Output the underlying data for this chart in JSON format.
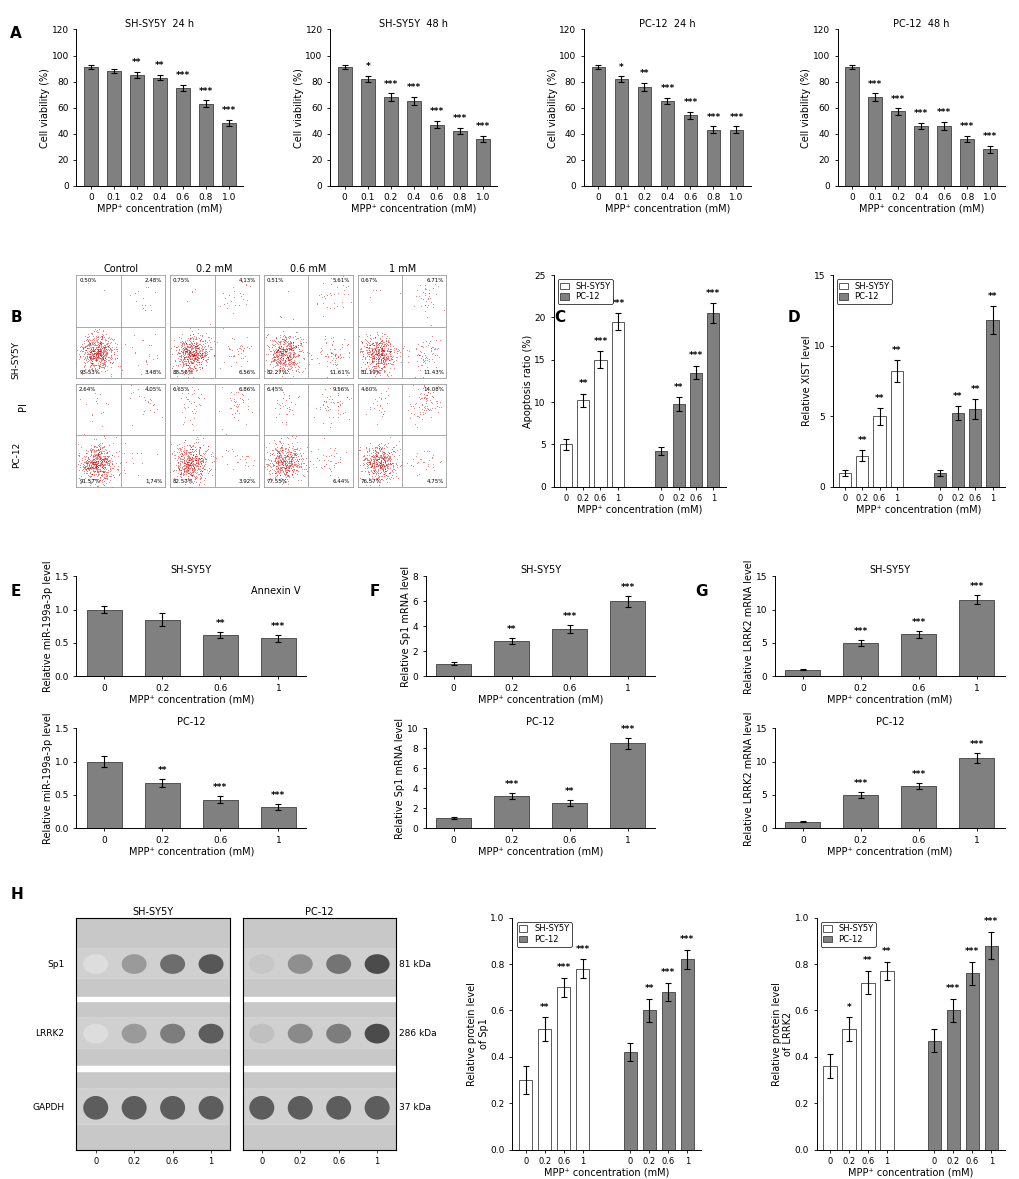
{
  "panel_A": {
    "subplots": [
      {
        "title": "SH-SY5Y  24 h",
        "x_labels": [
          "0",
          "0.1",
          "0.2",
          "0.4",
          "0.6",
          "0.8",
          "1.0"
        ],
        "values": [
          91,
          88,
          85,
          83,
          75,
          63,
          48
        ],
        "errors": [
          1.5,
          1.5,
          2.5,
          2.0,
          2.5,
          2.5,
          2.5
        ],
        "stars": [
          "",
          "",
          "**",
          "**",
          "***",
          "***",
          "***"
        ]
      },
      {
        "title": "SH-SY5Y  48 h",
        "x_labels": [
          "0",
          "0.1",
          "0.2",
          "0.4",
          "0.6",
          "0.8",
          "1.0"
        ],
        "values": [
          91,
          82,
          68,
          65,
          47,
          42,
          36
        ],
        "errors": [
          1.5,
          2.5,
          3.0,
          3.0,
          3.0,
          2.5,
          2.5
        ],
        "stars": [
          "",
          "*",
          "***",
          "***",
          "***",
          "***",
          "***"
        ]
      },
      {
        "title": "PC-12  24 h",
        "x_labels": [
          "0",
          "0.1",
          "0.2",
          "0.4",
          "0.6",
          "0.8",
          "1.0"
        ],
        "values": [
          91,
          82,
          76,
          65,
          54,
          43,
          43
        ],
        "errors": [
          1.5,
          2.0,
          3.0,
          2.5,
          2.5,
          2.5,
          2.5
        ],
        "stars": [
          "",
          "*",
          "**",
          "***",
          "***",
          "***",
          "***"
        ]
      },
      {
        "title": "PC-12  48 h",
        "x_labels": [
          "0",
          "0.1",
          "0.2",
          "0.4",
          "0.6",
          "0.8",
          "1.0"
        ],
        "values": [
          91,
          68,
          57,
          46,
          46,
          36,
          28
        ],
        "errors": [
          1.5,
          3.0,
          2.5,
          2.5,
          3.0,
          2.5,
          2.5
        ],
        "stars": [
          "",
          "***",
          "***",
          "***",
          "***",
          "***",
          "***"
        ]
      }
    ],
    "ylabel": "Cell viability (%)",
    "xlabel": "MPP⁺ concentration (mM)",
    "ylim": [
      0,
      120
    ],
    "yticks": [
      0,
      20,
      40,
      60,
      80,
      100,
      120
    ],
    "bar_color": "#808080"
  },
  "panel_C": {
    "sh_values": [
      5.0,
      10.2,
      15.0,
      19.5
    ],
    "pc_values": [
      4.2,
      9.8,
      13.5,
      20.5
    ],
    "sh_errors": [
      0.6,
      0.8,
      1.0,
      1.0
    ],
    "pc_errors": [
      0.5,
      0.8,
      0.8,
      1.2
    ],
    "sh_stars": [
      "",
      "**",
      "***",
      "***"
    ],
    "pc_stars": [
      "",
      "**",
      "***",
      "***"
    ],
    "ylabel": "Apoptosis ratio (%)",
    "xlabel": "MPP⁺ concentration (mM)",
    "ylim": [
      0,
      25
    ],
    "yticks": [
      0,
      5,
      10,
      15,
      20,
      25
    ],
    "groups": [
      "0",
      "0.2",
      "0.6",
      "1"
    ],
    "sh_color": "white",
    "pc_color": "#808080",
    "legend": [
      "SH-SY5Y",
      "PC-12"
    ]
  },
  "panel_D": {
    "sh_values": [
      1.0,
      2.2,
      5.0,
      8.2
    ],
    "pc_values": [
      1.0,
      5.2,
      5.5,
      11.8
    ],
    "sh_errors": [
      0.2,
      0.4,
      0.6,
      0.8
    ],
    "pc_errors": [
      0.2,
      0.5,
      0.7,
      1.0
    ],
    "sh_stars": [
      "",
      "**",
      "**",
      "**"
    ],
    "pc_stars": [
      "",
      "**",
      "**",
      "**"
    ],
    "ylabel": "Relative XIST level",
    "xlabel": "MPP⁺ concentration (mM)",
    "ylim": [
      0,
      15
    ],
    "yticks": [
      0,
      5,
      10,
      15
    ],
    "groups": [
      "0",
      "0.2",
      "0.6",
      "1"
    ],
    "sh_color": "white",
    "pc_color": "#808080",
    "legend": [
      "SH-SY5Y",
      "PC-12"
    ]
  },
  "panel_E": {
    "subplots": [
      {
        "title": "SH-SY5Y",
        "groups": [
          "0",
          "0.2",
          "0.6",
          "1"
        ],
        "values": [
          1.0,
          0.85,
          0.62,
          0.57
        ],
        "errors": [
          0.05,
          0.1,
          0.05,
          0.05
        ],
        "stars": [
          "",
          "",
          "**",
          "***"
        ]
      },
      {
        "title": "PC-12",
        "groups": [
          "0",
          "0.2",
          "0.6",
          "1"
        ],
        "values": [
          1.0,
          0.68,
          0.43,
          0.32
        ],
        "errors": [
          0.08,
          0.06,
          0.05,
          0.04
        ],
        "stars": [
          "",
          "**",
          "***",
          "***"
        ]
      }
    ],
    "ylabel": "Relative miR-199a-3p level",
    "xlabel": "MPP⁺ concentration (mM)",
    "ylim": [
      0,
      1.5
    ],
    "yticks": [
      0.0,
      0.5,
      1.0,
      1.5
    ],
    "bar_color": "#808080"
  },
  "panel_F": {
    "subplots": [
      {
        "title": "SH-SY5Y",
        "groups": [
          "0",
          "0.2",
          "0.6",
          "1"
        ],
        "values": [
          1.0,
          2.8,
          3.8,
          6.0
        ],
        "errors": [
          0.12,
          0.25,
          0.3,
          0.45
        ],
        "stars": [
          "",
          "**",
          "***",
          "***"
        ]
      },
      {
        "title": "PC-12",
        "groups": [
          "0",
          "0.2",
          "0.6",
          "1"
        ],
        "values": [
          1.0,
          3.2,
          2.5,
          8.5
        ],
        "errors": [
          0.12,
          0.3,
          0.28,
          0.55
        ],
        "stars": [
          "",
          "***",
          "**",
          "***"
        ]
      }
    ],
    "ylabel": "Relative Sp1 mRNA level",
    "xlabel": "MPP⁺ concentration (mM)",
    "ylim_sh": [
      0,
      8
    ],
    "ylim_pc": [
      0,
      10
    ],
    "yticks_sh": [
      0,
      2,
      4,
      6,
      8
    ],
    "yticks_pc": [
      0,
      2,
      4,
      6,
      8,
      10
    ],
    "bar_color": "#808080"
  },
  "panel_G": {
    "subplots": [
      {
        "title": "SH-SY5Y",
        "groups": [
          "0",
          "0.2",
          "0.6",
          "1"
        ],
        "values": [
          1.0,
          5.0,
          6.3,
          11.5
        ],
        "errors": [
          0.12,
          0.45,
          0.5,
          0.65
        ],
        "stars": [
          "",
          "***",
          "***",
          "***"
        ]
      },
      {
        "title": "PC-12",
        "groups": [
          "0",
          "0.2",
          "0.6",
          "1"
        ],
        "values": [
          1.0,
          5.0,
          6.3,
          10.5
        ],
        "errors": [
          0.12,
          0.45,
          0.45,
          0.75
        ],
        "stars": [
          "",
          "***",
          "***",
          "***"
        ]
      }
    ],
    "ylabel": "Relative LRRK2 mRNA level",
    "xlabel": "MPP⁺ concentration (mM)",
    "ylim": [
      0,
      15
    ],
    "yticks": [
      0,
      5,
      10,
      15
    ],
    "bar_color": "#808080"
  },
  "panel_H": {
    "western_labels_left": [
      "Sp1",
      "LRRK2",
      "GAPDH"
    ],
    "western_labels_right": [
      "81 kDa",
      "286 kDa",
      "37 kDa"
    ],
    "sh_mpp": [
      "0",
      "0.2",
      "0.6",
      "1"
    ],
    "pc_mpp": [
      "0",
      "0.2",
      "0.6",
      "1"
    ],
    "sp1_sh": [
      0.3,
      0.52,
      0.7,
      0.78
    ],
    "sp1_pc": [
      0.42,
      0.6,
      0.68,
      0.82
    ],
    "sp1_sh_err": [
      0.06,
      0.05,
      0.04,
      0.04
    ],
    "sp1_pc_err": [
      0.04,
      0.05,
      0.04,
      0.04
    ],
    "sp1_sh_stars": [
      "",
      "**",
      "***",
      "***"
    ],
    "sp1_pc_stars": [
      "",
      "**",
      "***",
      "***"
    ],
    "lrrk2_sh": [
      0.36,
      0.52,
      0.72,
      0.77
    ],
    "lrrk2_pc": [
      0.47,
      0.6,
      0.76,
      0.88
    ],
    "lrrk2_sh_err": [
      0.05,
      0.05,
      0.05,
      0.04
    ],
    "lrrk2_pc_err": [
      0.05,
      0.05,
      0.05,
      0.06
    ],
    "lrrk2_sh_stars": [
      "",
      "*",
      "**",
      "**"
    ],
    "lrrk2_pc_stars": [
      "",
      "***",
      "***",
      "***"
    ],
    "ylabel_sp1": "Relative protein level\nof Sp1",
    "ylabel_lrrk2": "Relative protein level\nof LRRK2",
    "xlabel": "MPP⁺ concentration (mM)",
    "ylim": [
      0,
      1.0
    ],
    "yticks": [
      0.0,
      0.2,
      0.4,
      0.6,
      0.8,
      1.0
    ],
    "sh_color": "white",
    "pc_color": "#808080",
    "legend": [
      "SH-SY5Y",
      "PC-12"
    ]
  },
  "bar_color": "#808080",
  "bar_edge_color": "#404040",
  "font_size": 7,
  "star_font_size": 6.5,
  "flow_data": {
    "SH-SY5Y": [
      {
        "UL": "0.50%",
        "UR": "2.48%",
        "LL": "93.53%",
        "LR": "3.48%"
      },
      {
        "UL": "0.75%",
        "UR": "4.13%",
        "LL": "88.56%",
        "LR": "6.56%"
      },
      {
        "UL": "0.51%",
        "UR": "5.61%",
        "LL": "82.27%",
        "LR": "11.61%"
      },
      {
        "UL": "0.67%",
        "UR": "6.71%",
        "LL": "81.19%",
        "LR": "11.43%"
      }
    ],
    "PC-12": [
      {
        "UL": "2.64%",
        "UR": "4.05%",
        "LL": "91.57%",
        "LR": "1.74%"
      },
      {
        "UL": "6.65%",
        "UR": "6.86%",
        "LL": "82.57%",
        "LR": "3.92%"
      },
      {
        "UL": "6.45%",
        "UR": "9.56%",
        "LL": "77.55%",
        "LR": "6.44%"
      },
      {
        "UL": "4.60%",
        "UR": "14.08%",
        "LL": "76.57%",
        "LR": "4.75%"
      }
    ]
  },
  "col_titles": [
    "Control",
    "0.2 mM",
    "0.6 mM",
    "1 mM"
  ]
}
